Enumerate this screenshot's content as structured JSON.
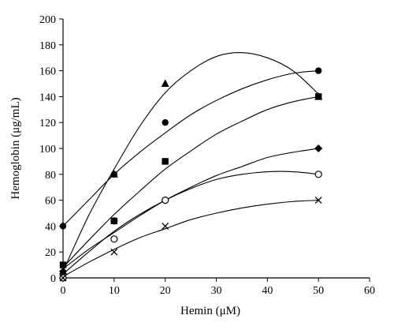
{
  "chart_data": {
    "type": "scatter",
    "xlabel": "Hemin (μM)",
    "ylabel": "Hemoglobin (μg/mL)",
    "xlim": [
      0,
      60
    ],
    "ylim": [
      0,
      200
    ],
    "xticks": [
      0,
      10,
      20,
      30,
      40,
      50,
      60
    ],
    "yticks": [
      0,
      20,
      40,
      60,
      80,
      100,
      120,
      140,
      160,
      180,
      200
    ],
    "grid": false,
    "legend": "none",
    "series": [
      {
        "marker": "triangle",
        "points": [
          [
            0,
            5
          ],
          [
            10,
            80
          ],
          [
            20,
            150
          ],
          [
            50,
            140
          ]
        ],
        "curve": [
          [
            0,
            5
          ],
          [
            5,
            48
          ],
          [
            10,
            84
          ],
          [
            15,
            117
          ],
          [
            20,
            143
          ],
          [
            25,
            160
          ],
          [
            30,
            171
          ],
          [
            35,
            174
          ],
          [
            40,
            170
          ],
          [
            45,
            160
          ],
          [
            50,
            142
          ]
        ]
      },
      {
        "marker": "circle-filled",
        "points": [
          [
            0,
            40
          ],
          [
            10,
            80
          ],
          [
            20,
            120
          ],
          [
            50,
            160
          ]
        ],
        "curve": [
          [
            0,
            40
          ],
          [
            5,
            60
          ],
          [
            10,
            80
          ],
          [
            15,
            97
          ],
          [
            20,
            112
          ],
          [
            25,
            126
          ],
          [
            30,
            137
          ],
          [
            35,
            146
          ],
          [
            40,
            153
          ],
          [
            45,
            158
          ],
          [
            50,
            160
          ]
        ]
      },
      {
        "marker": "square",
        "points": [
          [
            0,
            10
          ],
          [
            10,
            44
          ],
          [
            20,
            90
          ],
          [
            50,
            140
          ]
        ],
        "curve": [
          [
            0,
            8
          ],
          [
            5,
            29
          ],
          [
            10,
            49
          ],
          [
            15,
            67
          ],
          [
            20,
            84
          ],
          [
            25,
            98
          ],
          [
            30,
            111
          ],
          [
            35,
            121
          ],
          [
            40,
            130
          ],
          [
            45,
            136
          ],
          [
            50,
            140
          ]
        ]
      },
      {
        "marker": "diamond",
        "points": [
          [
            0,
            5
          ],
          [
            10,
            44
          ],
          [
            20,
            60
          ],
          [
            50,
            100
          ]
        ],
        "curve": [
          [
            0,
            7
          ],
          [
            5,
            22
          ],
          [
            10,
            35
          ],
          [
            15,
            48
          ],
          [
            20,
            60
          ],
          [
            25,
            70
          ],
          [
            30,
            79
          ],
          [
            35,
            86
          ],
          [
            40,
            93
          ],
          [
            45,
            97
          ],
          [
            50,
            100
          ]
        ]
      },
      {
        "marker": "circle-open",
        "points": [
          [
            0,
            0
          ],
          [
            10,
            30
          ],
          [
            20,
            60
          ],
          [
            50,
            80
          ]
        ],
        "curve": [
          [
            0,
            3
          ],
          [
            5,
            20
          ],
          [
            10,
            36
          ],
          [
            15,
            49
          ],
          [
            20,
            60
          ],
          [
            25,
            69
          ],
          [
            30,
            76
          ],
          [
            35,
            80
          ],
          [
            40,
            82
          ],
          [
            45,
            82
          ],
          [
            50,
            80
          ]
        ]
      },
      {
        "marker": "cross",
        "points": [
          [
            0,
            0
          ],
          [
            10,
            20
          ],
          [
            20,
            40
          ],
          [
            50,
            60
          ]
        ],
        "curve": [
          [
            0,
            1
          ],
          [
            5,
            12
          ],
          [
            10,
            22
          ],
          [
            15,
            31
          ],
          [
            20,
            38
          ],
          [
            25,
            45
          ],
          [
            30,
            50
          ],
          [
            35,
            54
          ],
          [
            40,
            57
          ],
          [
            45,
            59
          ],
          [
            50,
            60
          ]
        ]
      }
    ]
  }
}
